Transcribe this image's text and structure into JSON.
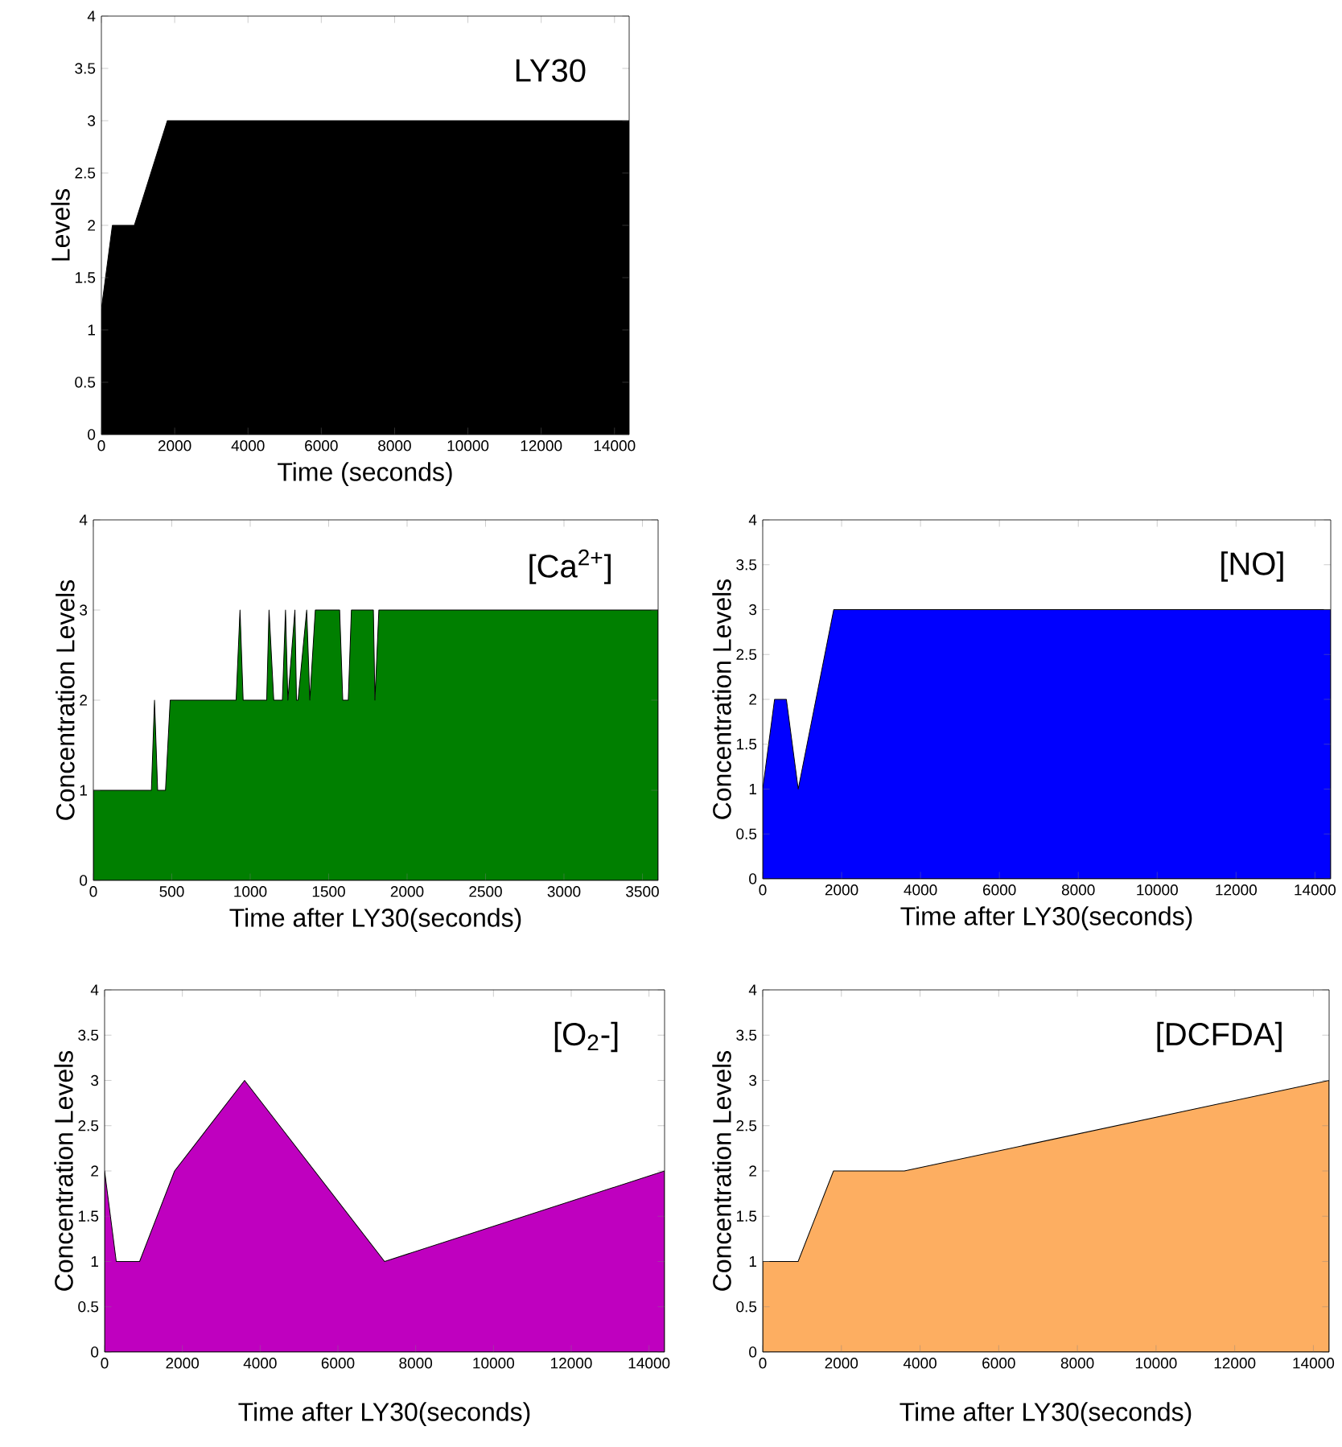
{
  "chart_data": [
    {
      "type": "area",
      "xlabel": "Time (seconds)",
      "ylabel": "Levels",
      "annotations": [
        "LY30"
      ],
      "color": "#000000",
      "x": [
        0,
        300,
        900,
        1800,
        14400
      ],
      "values": [
        1.2,
        2,
        2,
        3,
        3
      ],
      "xlim": [
        0,
        14400
      ],
      "ylim": [
        0,
        4
      ],
      "xticks": [
        0,
        2000,
        4000,
        6000,
        8000,
        10000,
        12000,
        14000
      ],
      "yticks": [
        0,
        0.5,
        1,
        1.5,
        2,
        2.5,
        3,
        3.5,
        4
      ]
    },
    {
      "type": "area",
      "xlabel": "Time after LY30(seconds)",
      "ylabel": "Concentration Levels",
      "annotations": [
        "[Ca$^{2+}$]"
      ],
      "color": "#007f00",
      "x": [
        0,
        370,
        390,
        410,
        460,
        490,
        910,
        935,
        955,
        1105,
        1120,
        1150,
        1205,
        1225,
        1240,
        1285,
        1295,
        1305,
        1360,
        1380,
        1415,
        1570,
        1590,
        1625,
        1645,
        1785,
        1795,
        1820,
        3600
      ],
      "values": [
        1,
        1,
        2,
        1,
        1,
        2,
        2,
        3,
        2,
        2,
        3,
        2,
        2,
        3,
        2,
        3,
        2,
        2,
        3,
        2,
        3,
        3,
        2,
        2,
        3,
        3,
        2,
        3,
        3
      ],
      "xlim": [
        0,
        3600
      ],
      "ylim": [
        0,
        4
      ],
      "xticks": [
        0,
        500,
        1000,
        1500,
        2000,
        2500,
        3000,
        3500
      ],
      "yticks": [
        0,
        1,
        2,
        3,
        4
      ]
    },
    {
      "type": "area",
      "xlabel": "Time after LY30(seconds)",
      "ylabel": "Concentration Levels",
      "annotations": [
        "[NO]"
      ],
      "color": "#0000ff",
      "x": [
        0,
        300,
        600,
        900,
        1800,
        14400
      ],
      "values": [
        1,
        2,
        2,
        1,
        3,
        3
      ],
      "xlim": [
        0,
        14400
      ],
      "ylim": [
        0,
        4
      ],
      "xticks": [
        0,
        2000,
        4000,
        6000,
        8000,
        10000,
        12000,
        14000
      ],
      "yticks": [
        0,
        0.5,
        1,
        1.5,
        2,
        2.5,
        3,
        3.5,
        4
      ]
    },
    {
      "type": "area",
      "xlabel": "Time after LY30(seconds)",
      "ylabel": "Concentration Levels",
      "annotations": [
        "[O$_{2}$-]"
      ],
      "color": "#bf00bf",
      "x": [
        0,
        300,
        900,
        1800,
        3600,
        7200,
        14400
      ],
      "values": [
        2,
        1,
        1,
        2,
        3,
        1,
        2
      ],
      "xlim": [
        0,
        14400
      ],
      "ylim": [
        0,
        4
      ],
      "xticks": [
        0,
        2000,
        4000,
        6000,
        8000,
        10000,
        12000,
        14000
      ],
      "yticks": [
        0,
        0.5,
        1,
        1.5,
        2,
        2.5,
        3,
        3.5,
        4
      ]
    },
    {
      "type": "area",
      "xlabel": "Time after LY30(seconds)",
      "ylabel": "Concentration Levels",
      "annotations": [
        "[DCFDA]"
      ],
      "color": "#fdae61",
      "x": [
        0,
        900,
        1800,
        3600,
        14400
      ],
      "values": [
        1,
        1,
        2,
        2,
        3
      ],
      "xlim": [
        0,
        14400
      ],
      "ylim": [
        0,
        4
      ],
      "xticks": [
        0,
        2000,
        4000,
        6000,
        8000,
        10000,
        12000,
        14000
      ],
      "yticks": [
        0,
        0.5,
        1,
        1.5,
        2,
        2.5,
        3,
        3.5,
        4
      ]
    }
  ]
}
